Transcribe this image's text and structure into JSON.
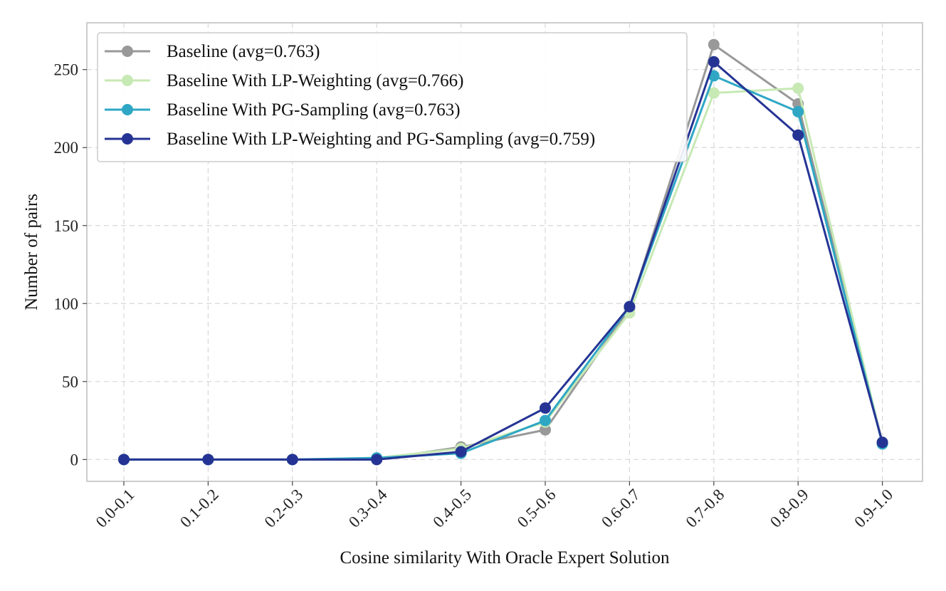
{
  "chart_data": {
    "type": "line",
    "title": "",
    "xlabel": "Cosine similarity With Oracle Expert Solution",
    "ylabel": "Number of pairs",
    "categories": [
      "0.0-0.1",
      "0.1-0.2",
      "0.2-0.3",
      "0.3-0.4",
      "0.4-0.5",
      "0.5-0.6",
      "0.6-0.7",
      "0.7-0.8",
      "0.8-0.9",
      "0.9-1.0"
    ],
    "yticks": [
      0,
      50,
      100,
      150,
      200,
      250
    ],
    "ylim": [
      -14,
      280
    ],
    "grid": true,
    "legend_position": "top-left",
    "series": [
      {
        "name": "Baseline (avg=0.763)",
        "color": "#999999",
        "values": [
          0,
          0,
          0,
          0,
          8,
          19,
          97,
          266,
          228,
          11
        ]
      },
      {
        "name": "Baseline With LP-Weighting (avg=0.766)",
        "color": "#c7e9b4",
        "values": [
          0,
          0,
          0,
          1,
          7,
          24,
          94,
          235,
          238,
          10
        ]
      },
      {
        "name": "Baseline With PG-Sampling (avg=0.763)",
        "color": "#2fa7c4",
        "values": [
          0,
          0,
          0,
          1,
          4,
          25,
          98,
          246,
          223,
          10
        ]
      },
      {
        "name": "Baseline With LP-Weighting and PG-Sampling (avg=0.759)",
        "color": "#253494",
        "values": [
          0,
          0,
          0,
          0,
          5,
          33,
          98,
          255,
          208,
          11
        ]
      }
    ]
  }
}
